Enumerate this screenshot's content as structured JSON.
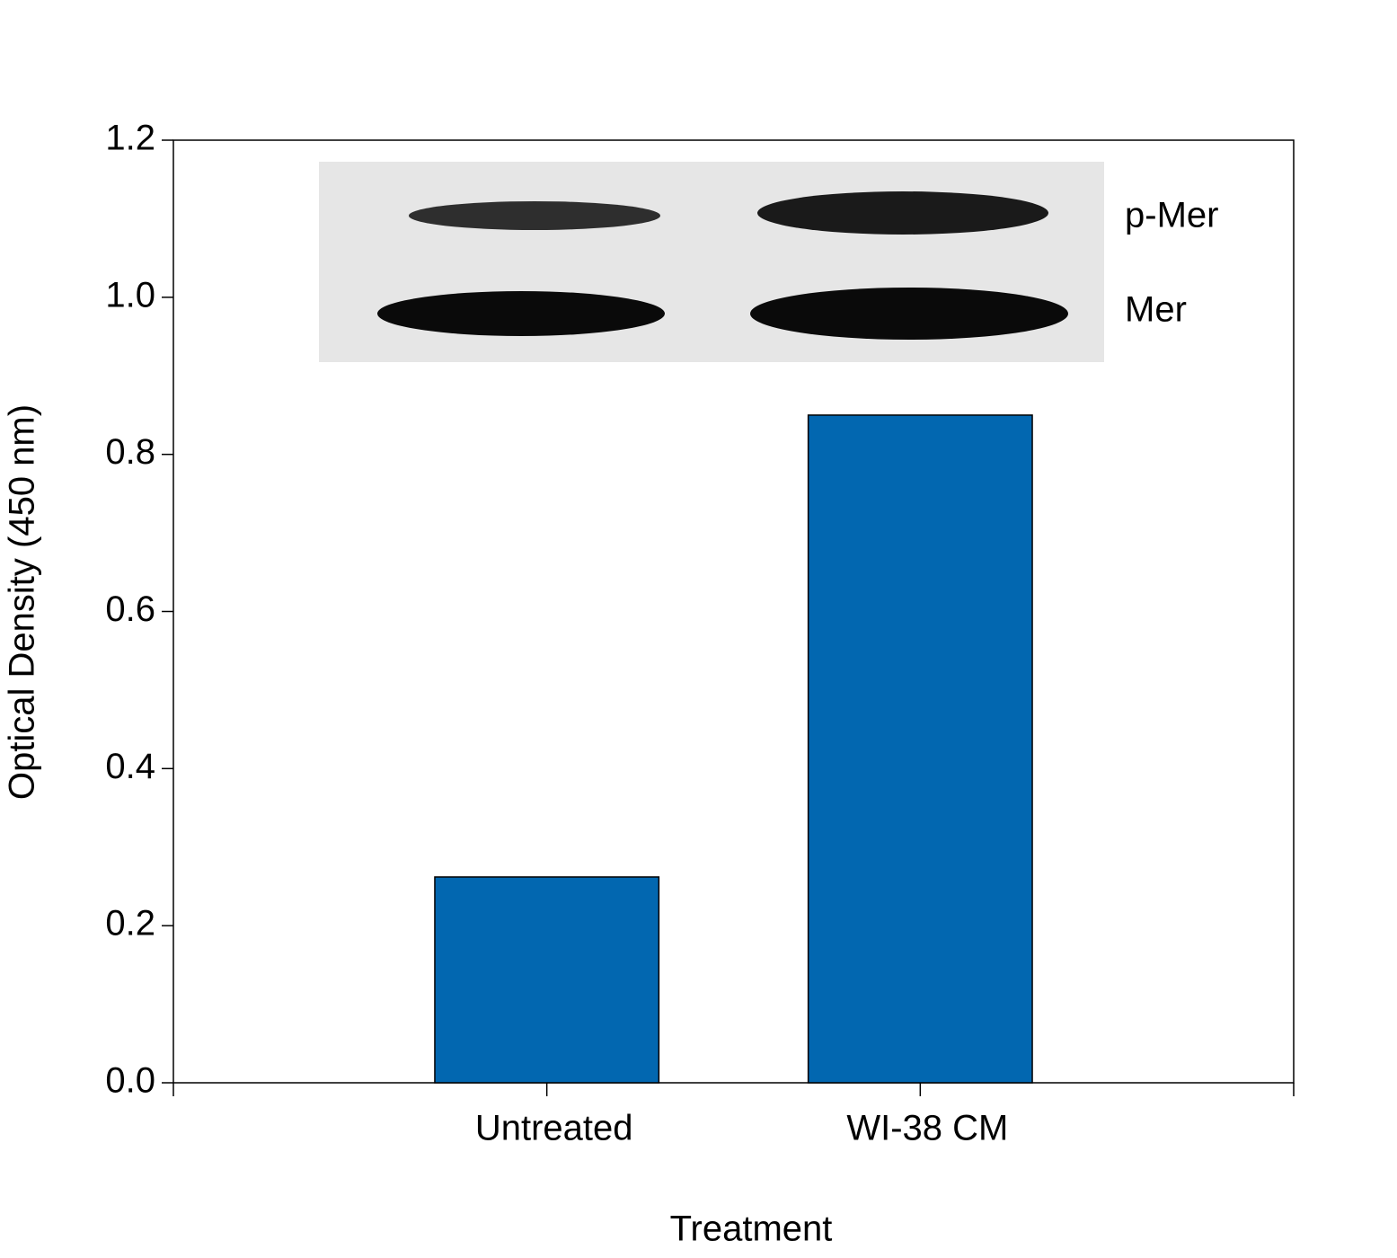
{
  "chart_data": {
    "type": "bar",
    "categories": [
      "Untreated",
      "WI-38 CM"
    ],
    "values": [
      0.262,
      0.85
    ],
    "color": "#0267b0",
    "xlabel": "Treatment",
    "ylabel": "Optical Density (450 nm)",
    "ylim": [
      0,
      1.2
    ],
    "yticks": [
      {
        "value": 0,
        "label": "0.0"
      },
      0.2,
      0.4,
      0.6,
      0.8,
      {
        "value": 1,
        "label": "1.0"
      },
      1.2
    ],
    "annotations": [
      "p-Mer",
      "Mer"
    ]
  }
}
